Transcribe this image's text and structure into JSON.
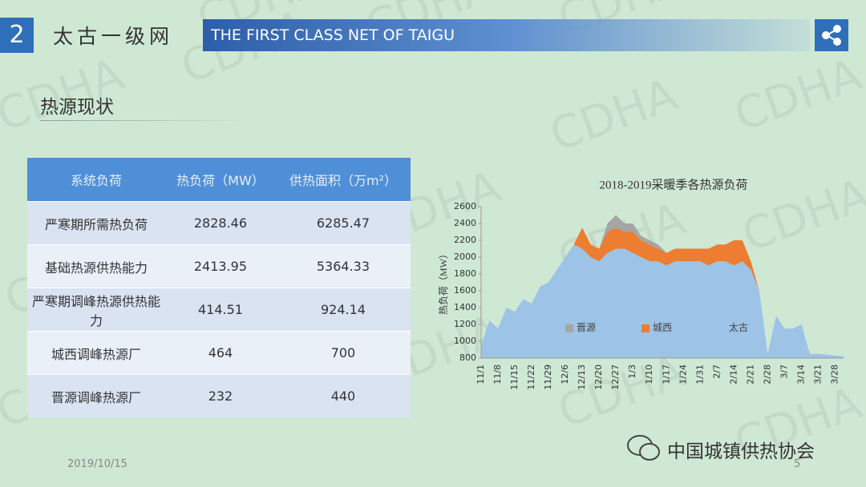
{
  "header": {
    "number": "2",
    "title": "太古一级网",
    "banner": "THE FIRST CLASS NET OF TAIGU"
  },
  "section_title": "热源现状",
  "watermark": "CDHA",
  "table": {
    "header": [
      "系统负荷",
      "热负荷（MW）",
      "供热面积（万m²）"
    ],
    "rows": [
      [
        "严寒期所需热负荷",
        "2828.46",
        "6285.47"
      ],
      [
        "基础热源供热能力",
        "2413.95",
        "5364.33"
      ],
      [
        "严寒期调峰热源供热能力",
        "414.51",
        "924.14"
      ],
      [
        "城西调峰热源厂",
        "464",
        "700"
      ],
      [
        "晋源调峰热源厂",
        "232",
        "440"
      ]
    ]
  },
  "chart_data": {
    "type": "area",
    "stacked": true,
    "title": "2018-2019采暖季各热源负荷",
    "y_label": "热负荷（MW）",
    "categories": [
      "11/1",
      null,
      "11/8",
      null,
      "11/15",
      null,
      "11/22",
      null,
      "11/29",
      null,
      "12/6",
      null,
      "12/13",
      null,
      "12/20",
      null,
      "12/27",
      null,
      "1/3",
      null,
      "1/10",
      null,
      "1/17",
      null,
      "1/24",
      null,
      "1/31",
      null,
      "2/7",
      null,
      "2/14",
      null,
      "2/21",
      null,
      "2/28",
      null,
      "3/7",
      null,
      "3/14",
      null,
      "3/21",
      null,
      "3/28",
      null
    ],
    "series": [
      {
        "name": "晋源",
        "color": "#a5a5a5",
        "values": [
          0,
          0,
          0,
          0,
          0,
          0,
          0,
          0,
          0,
          0,
          0,
          0,
          0,
          0,
          0,
          100,
          150,
          100,
          100,
          50,
          50,
          50,
          0,
          0,
          0,
          0,
          0,
          0,
          0,
          0,
          0,
          0,
          0,
          0,
          0,
          0,
          0,
          0,
          0,
          0,
          0,
          0,
          0,
          0
        ]
      },
      {
        "name": "城西",
        "color": "#ed7d31",
        "values": [
          0,
          0,
          0,
          0,
          0,
          0,
          0,
          0,
          0,
          0,
          0,
          0,
          250,
          150,
          150,
          250,
          250,
          200,
          250,
          200,
          200,
          150,
          150,
          150,
          150,
          150,
          150,
          200,
          200,
          200,
          300,
          250,
          100,
          0,
          0,
          0,
          0,
          0,
          0,
          0,
          0,
          0,
          0,
          0
        ]
      },
      {
        "name": "太古",
        "color": "#9dc3e6",
        "values": [
          950,
          1250,
          1150,
          1400,
          1350,
          1500,
          1450,
          1650,
          1700,
          1850,
          2000,
          2150,
          2100,
          2000,
          1950,
          2050,
          2100,
          2100,
          2050,
          2000,
          1950,
          1950,
          1900,
          1950,
          1950,
          1950,
          1950,
          1900,
          1950,
          1950,
          1900,
          1950,
          1850,
          1600,
          850,
          1300,
          1150,
          1150,
          1200,
          850,
          850,
          840,
          830,
          820
        ]
      }
    ],
    "ylim": [
      800,
      2600
    ],
    "yticks": [
      800,
      1000,
      1200,
      1400,
      1600,
      1800,
      2000,
      2200,
      2400,
      2600
    ],
    "grid": false
  },
  "footer": {
    "date": "2019/10/15",
    "page": "5",
    "org": "中国城镇供热协会"
  }
}
